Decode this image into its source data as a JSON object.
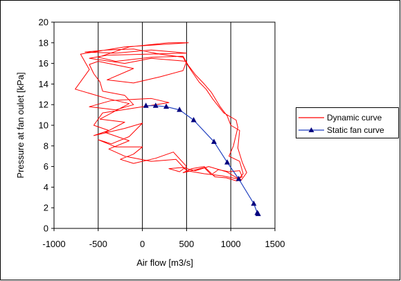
{
  "chart_data": {
    "type": "line",
    "xlabel": "Air flow  [m3/s]",
    "ylabel": "Pressure at fan oulet  [kPa]",
    "xlim": [
      -1000,
      1500
    ],
    "ylim": [
      0,
      20
    ],
    "x_ticks": [
      "-1000",
      "-500",
      "0",
      "500",
      "1000",
      "1500"
    ],
    "y_ticks": [
      "0",
      "2",
      "4",
      "6",
      "8",
      "10",
      "12",
      "14",
      "16",
      "18",
      "20"
    ],
    "x_tick_values": [
      -1000,
      -500,
      0,
      500,
      1000,
      1500
    ],
    "y_tick_values": [
      0,
      2,
      4,
      6,
      8,
      10,
      12,
      14,
      16,
      18,
      20
    ],
    "grid": "vertical",
    "legend_position": "right",
    "series": [
      {
        "name": "Dynamic curve",
        "color": "#ff0000",
        "marker": "none",
        "points": [
          [
            1130,
            5.0
          ],
          [
            1100,
            5.6
          ],
          [
            980,
            5.5
          ],
          [
            860,
            5.7
          ],
          [
            780,
            5.2
          ],
          [
            700,
            5.9
          ],
          [
            560,
            5.6
          ],
          [
            460,
            5.4
          ],
          [
            560,
            5.8
          ],
          [
            700,
            6.0
          ],
          [
            820,
            5.0
          ],
          [
            950,
            4.9
          ],
          [
            1070,
            4.6
          ],
          [
            1140,
            5.3
          ],
          [
            1100,
            6.5
          ],
          [
            980,
            7.0
          ],
          [
            1030,
            8.0
          ],
          [
            1080,
            9.8
          ],
          [
            1060,
            10.5
          ],
          [
            920,
            11.2
          ],
          [
            800,
            12.5
          ],
          [
            720,
            13.5
          ],
          [
            640,
            14.2
          ],
          [
            560,
            15.2
          ],
          [
            500,
            16.0
          ],
          [
            460,
            16.6
          ],
          [
            200,
            16.9
          ],
          [
            -100,
            17.4
          ],
          [
            -400,
            17.3
          ],
          [
            -650,
            17.1
          ],
          [
            -300,
            17.0
          ],
          [
            100,
            17.3
          ],
          [
            500,
            17.0
          ],
          [
            -400,
            16.8
          ],
          [
            -600,
            16.5
          ],
          [
            -200,
            16.0
          ],
          [
            100,
            16.5
          ],
          [
            500,
            16.2
          ],
          [
            460,
            15.3
          ],
          [
            200,
            14.7
          ],
          [
            -100,
            14.1
          ],
          [
            -400,
            14.4
          ],
          [
            -100,
            15.5
          ],
          [
            -500,
            16.2
          ],
          [
            -600,
            15.9
          ],
          [
            -550,
            15.0
          ],
          [
            -480,
            14.2
          ],
          [
            -450,
            13.3
          ],
          [
            -200,
            12.9
          ],
          [
            -100,
            12.0
          ],
          [
            -300,
            11.5
          ],
          [
            -600,
            11.8
          ],
          [
            -350,
            12.4
          ],
          [
            100,
            12.6
          ],
          [
            300,
            12.2
          ],
          [
            -150,
            11.6
          ],
          [
            -450,
            11.2
          ],
          [
            -550,
            10.0
          ],
          [
            -380,
            9.5
          ],
          [
            -550,
            9.0
          ],
          [
            -200,
            9.7
          ],
          [
            0,
            10.2
          ],
          [
            -150,
            8.9
          ],
          [
            -350,
            8.2
          ],
          [
            -500,
            8.6
          ],
          [
            -300,
            7.9
          ],
          [
            0,
            7.9
          ],
          [
            -100,
            7.2
          ],
          [
            -250,
            6.7
          ],
          [
            -100,
            6.3
          ],
          [
            150,
            6.8
          ],
          [
            350,
            7.4
          ],
          [
            500,
            6.0
          ],
          [
            420,
            5.5
          ],
          [
            300,
            5.8
          ],
          [
            450,
            5.9
          ],
          [
            600,
            5.6
          ],
          [
            750,
            6.0
          ],
          [
            950,
            5.5
          ],
          [
            1050,
            5.0
          ],
          [
            1120,
            4.7
          ],
          [
            1180,
            5.4
          ],
          [
            1130,
            6.4
          ],
          [
            1080,
            7.8
          ],
          [
            1100,
            9.5
          ],
          [
            1000,
            10.0
          ],
          [
            960,
            10.9
          ],
          [
            880,
            11.8
          ],
          [
            780,
            13.2
          ],
          [
            700,
            14.0
          ],
          [
            600,
            14.9
          ],
          [
            520,
            15.8
          ],
          [
            460,
            16.7
          ],
          [
            100,
            16.6
          ],
          [
            -300,
            16.2
          ],
          [
            -500,
            16.6
          ],
          [
            -150,
            17.6
          ],
          [
            300,
            18.0
          ],
          [
            520,
            18.0
          ],
          [
            -200,
            17.6
          ],
          [
            -700,
            16.9
          ],
          [
            -600,
            15.4
          ],
          [
            -760,
            13.5
          ],
          [
            -400,
            12.6
          ],
          [
            -150,
            12.1
          ],
          [
            -480,
            10.6
          ],
          [
            -200,
            10.3
          ],
          [
            -420,
            9.3
          ],
          [
            -150,
            8.5
          ],
          [
            -380,
            7.7
          ],
          [
            -200,
            7.0
          ],
          [
            100,
            6.5
          ],
          [
            380,
            6.7
          ],
          [
            500,
            5.6
          ],
          [
            700,
            5.3
          ],
          [
            900,
            5.1
          ],
          [
            1080,
            4.8
          ],
          [
            1130,
            5.0
          ]
        ]
      },
      {
        "name": "Static fan curve",
        "color": "#1f3fbf",
        "marker": "triangle",
        "marker_color": "#00007f",
        "points": [
          [
            40,
            11.9
          ],
          [
            150,
            11.9
          ],
          [
            270,
            11.8
          ],
          [
            420,
            11.5
          ],
          [
            580,
            10.5
          ],
          [
            810,
            8.4
          ],
          [
            960,
            6.4
          ],
          [
            1090,
            4.8
          ],
          [
            1260,
            2.4
          ],
          [
            1300,
            1.5
          ],
          [
            1310,
            1.4
          ]
        ]
      }
    ]
  }
}
